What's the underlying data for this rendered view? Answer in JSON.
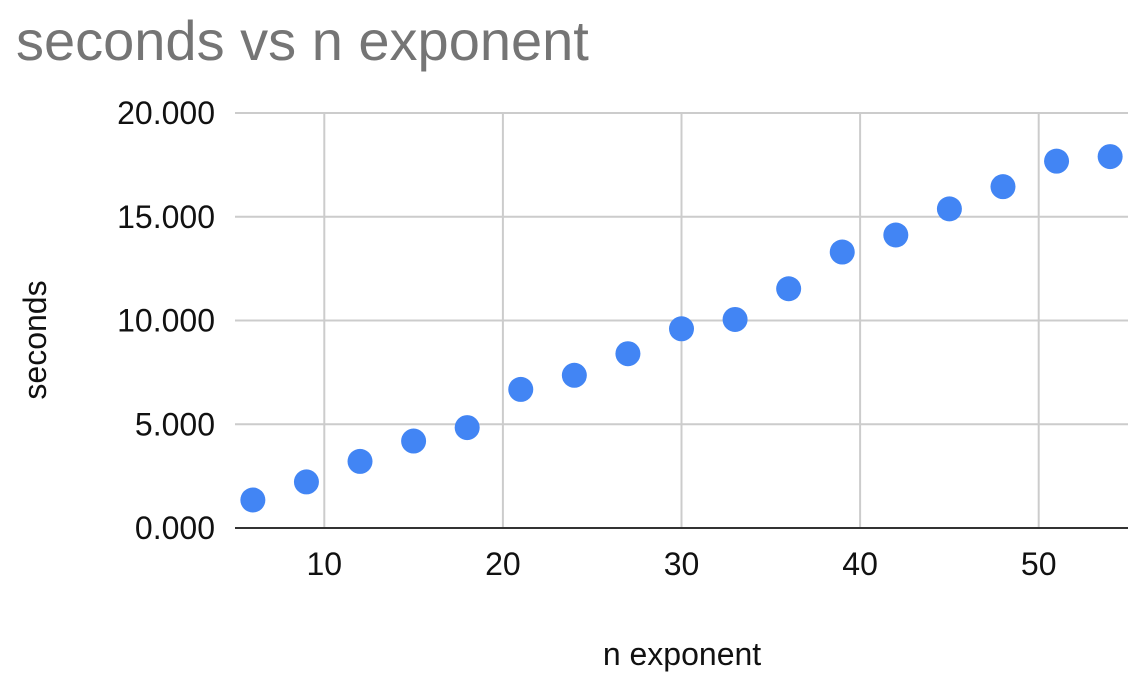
{
  "chart_data": {
    "type": "scatter",
    "title": "seconds vs n exponent",
    "xlabel": "n exponent",
    "ylabel": "seconds",
    "xlim": [
      5,
      55
    ],
    "ylim": [
      0,
      20
    ],
    "xticks": [
      10,
      20,
      30,
      40,
      50
    ],
    "yticks": [
      0,
      5,
      10,
      15,
      20
    ],
    "ytick_labels": [
      "0.000",
      "5.000",
      "10.000",
      "15.000",
      "20.000"
    ],
    "grid": true,
    "legend": "none",
    "colors": {
      "point": "#4285f4",
      "grid": "#cccccc",
      "axis": "#333333",
      "title": "#757575"
    },
    "series": [
      {
        "x": [
          6,
          9,
          12,
          15,
          18,
          21,
          24,
          27,
          30,
          33,
          36,
          39,
          42,
          45,
          48,
          51,
          54
        ],
        "y": [
          1.35,
          2.22,
          3.21,
          4.19,
          4.84,
          6.68,
          7.36,
          8.4,
          9.6,
          10.05,
          11.53,
          13.3,
          14.12,
          15.38,
          16.45,
          17.68,
          17.9
        ]
      }
    ]
  }
}
